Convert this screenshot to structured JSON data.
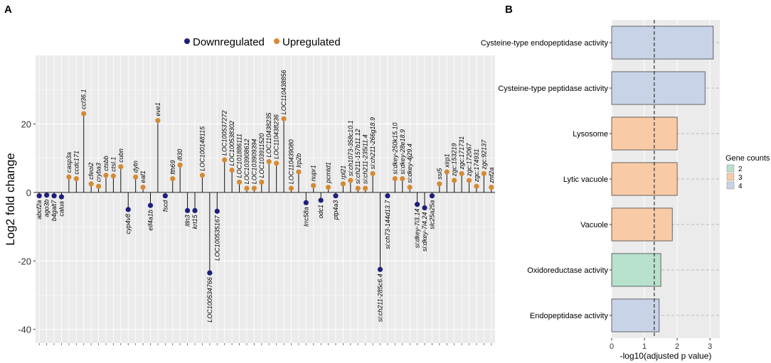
{
  "panel_a_label": "A",
  "panel_b_label": "B",
  "colors": {
    "down": "#1f1f7a",
    "up": "#d38b36",
    "panel_bg": "#ebebeb",
    "grid": "#ffffff",
    "gene_2": "#b7e1cd",
    "gene_3": "#f8cba6",
    "gene_4": "#c9d3e8"
  },
  "chart_data": [
    {
      "type": "scatter",
      "subtype": "lollipop",
      "ylabel": "Log2 fold change",
      "xlabel": "",
      "ylim": [
        -44,
        40
      ],
      "yticks": [
        -40,
        -20,
        0,
        20
      ],
      "grid": true,
      "legend": {
        "placement": "top-center",
        "entries": [
          {
            "label": "Downregulated",
            "color_key": "down"
          },
          {
            "label": "Upregulated",
            "color_key": "up"
          }
        ]
      },
      "genes": [
        {
          "name": "abcf2a",
          "value": -1.0,
          "dir": "down"
        },
        {
          "name": "ago3b",
          "value": -0.8,
          "dir": "down"
        },
        {
          "name": "b4galt7",
          "value": -1.0,
          "dir": "down"
        },
        {
          "name": "calua",
          "value": -1.3,
          "dir": "down"
        },
        {
          "name": "casp3a",
          "value": 4.5,
          "dir": "up"
        },
        {
          "name": "ccdc171",
          "value": 4.0,
          "dir": "up"
        },
        {
          "name": "ccl36.1",
          "value": 23.0,
          "dir": "up"
        },
        {
          "name": "cfeoi2",
          "value": 2.5,
          "dir": "up"
        },
        {
          "name": "cryba3",
          "value": 1.8,
          "dir": "up"
        },
        {
          "name": "ctsbb",
          "value": 5.0,
          "dir": "up"
        },
        {
          "name": "ctsl.1",
          "value": 4.8,
          "dir": "up"
        },
        {
          "name": "cubn",
          "value": 7.5,
          "dir": "up"
        },
        {
          "name": "cyp4v8",
          "value": -5.0,
          "dir": "down"
        },
        {
          "name": "dytn",
          "value": 4.5,
          "dir": "up"
        },
        {
          "name": "eaf1",
          "value": 1.5,
          "dir": "up"
        },
        {
          "name": "eif4a1b",
          "value": -3.8,
          "dir": "down"
        },
        {
          "name": "eve1",
          "value": 21.0,
          "dir": "up"
        },
        {
          "name": "fscd",
          "value": -1.0,
          "dir": "down"
        },
        {
          "name": "fth69",
          "value": 4.0,
          "dir": "up"
        },
        {
          "name": "ifi30",
          "value": 8.0,
          "dir": "up"
        },
        {
          "name": "itln3",
          "value": -5.3,
          "dir": "down"
        },
        {
          "name": "krt15",
          "value": -5.3,
          "dir": "down"
        },
        {
          "name": "LOC100148115",
          "value": 5.0,
          "dir": "up"
        },
        {
          "name": "LOC100534766",
          "value": -23.5,
          "dir": "down"
        },
        {
          "name": "LOC100535167",
          "value": -5.5,
          "dir": "down"
        },
        {
          "name": "LOC100537272",
          "value": 9.5,
          "dir": "up"
        },
        {
          "name": "LOC100538302",
          "value": 6.5,
          "dir": "up"
        },
        {
          "name": "LOC101886111",
          "value": 3.0,
          "dir": "up"
        },
        {
          "name": "LOC103908612",
          "value": 1.2,
          "dir": "up"
        },
        {
          "name": "LOC103909394",
          "value": 1.2,
          "dir": "up"
        },
        {
          "name": "LOC103911520",
          "value": 3.0,
          "dir": "up"
        },
        {
          "name": "LOC110438235",
          "value": 9.0,
          "dir": "up"
        },
        {
          "name": "LOC110438236",
          "value": 8.5,
          "dir": "up"
        },
        {
          "name": "LOC110438856",
          "value": 21.5,
          "dir": "up"
        },
        {
          "name": "LOC110439080",
          "value": 1.2,
          "dir": "up"
        },
        {
          "name": "lrp2b",
          "value": 6.0,
          "dir": "up"
        },
        {
          "name": "lrrc58a",
          "value": -3.0,
          "dir": "down"
        },
        {
          "name": "nupr1",
          "value": 2.0,
          "dir": "up"
        },
        {
          "name": "odc1",
          "value": -2.3,
          "dir": "down"
        },
        {
          "name": "pcmtd1",
          "value": 1.5,
          "dir": "up"
        },
        {
          "name": "ptp4a3",
          "value": -1.0,
          "dir": "down"
        },
        {
          "name": "rpl21",
          "value": 2.5,
          "dir": "up"
        },
        {
          "name": "si:ch1073-358c10.1",
          "value": 3.5,
          "dir": "up"
        },
        {
          "name": "si:ch211-157b11.12",
          "value": 1.2,
          "dir": "up"
        },
        {
          "name": "si:ch211-235i11.4",
          "value": 1.2,
          "dir": "up"
        },
        {
          "name": "si:ch211-266g18.9",
          "value": 5.5,
          "dir": "up"
        },
        {
          "name": "si:ch211-285c6.4",
          "value": -22.5,
          "dir": "down"
        },
        {
          "name": "si:ch73-144d13.7",
          "value": -1.0,
          "dir": "down"
        },
        {
          "name": "si:dkey-250k15.10",
          "value": 4.0,
          "dir": "up"
        },
        {
          "name": "si:dkey-28e18.9",
          "value": 4.0,
          "dir": "up"
        },
        {
          "name": "si:dkey-4j29.4",
          "value": 1.5,
          "dir": "up"
        },
        {
          "name": "si:dkey-7i3.14",
          "value": -3.5,
          "dir": "down"
        },
        {
          "name": "si:dkey-7i4.24",
          "value": -4.5,
          "dir": "down"
        },
        {
          "name": "slc25a25a",
          "value": -1.0,
          "dir": "down"
        },
        {
          "name": "ssi5",
          "value": 2.5,
          "dir": "up"
        },
        {
          "name": "xirp1",
          "value": 6.0,
          "dir": "up"
        },
        {
          "name": "zgc:153219",
          "value": 3.5,
          "dir": "up"
        },
        {
          "name": "zgc:171731",
          "value": 5.5,
          "dir": "up"
        },
        {
          "name": "zgc:172067",
          "value": 3.5,
          "dir": "up"
        },
        {
          "name": "zgc:174931",
          "value": 1.8,
          "dir": "up"
        },
        {
          "name": "zgc:92137",
          "value": 5.5,
          "dir": "up"
        },
        {
          "name": "znf2a",
          "value": 1.5,
          "dir": "up"
        }
      ]
    },
    {
      "type": "bar",
      "orientation": "horizontal",
      "xlabel": "-log10(adjusted p value)",
      "ylabel": "",
      "xlim": [
        0,
        3.3
      ],
      "xticks": [
        0,
        1,
        2,
        3
      ],
      "threshold_line": 1.3,
      "grid": true,
      "categories": [
        "Cysteine-type endopeptidase activity",
        "Cysteine-type peptidase activity",
        "Lysosome",
        "Lytic vacuole",
        "Vacuole",
        "Oxidoreductase activity",
        "Endopeptidase activity"
      ],
      "values": [
        3.1,
        2.85,
        2.0,
        2.0,
        1.85,
        1.5,
        1.45
      ],
      "gene_counts": [
        4,
        4,
        3,
        3,
        3,
        2,
        4
      ],
      "legend": {
        "title": "Gene counts",
        "placement": "right",
        "entries": [
          {
            "label": "2",
            "color_key": "gene_2"
          },
          {
            "label": "3",
            "color_key": "gene_3"
          },
          {
            "label": "4",
            "color_key": "gene_4"
          }
        ]
      }
    }
  ]
}
